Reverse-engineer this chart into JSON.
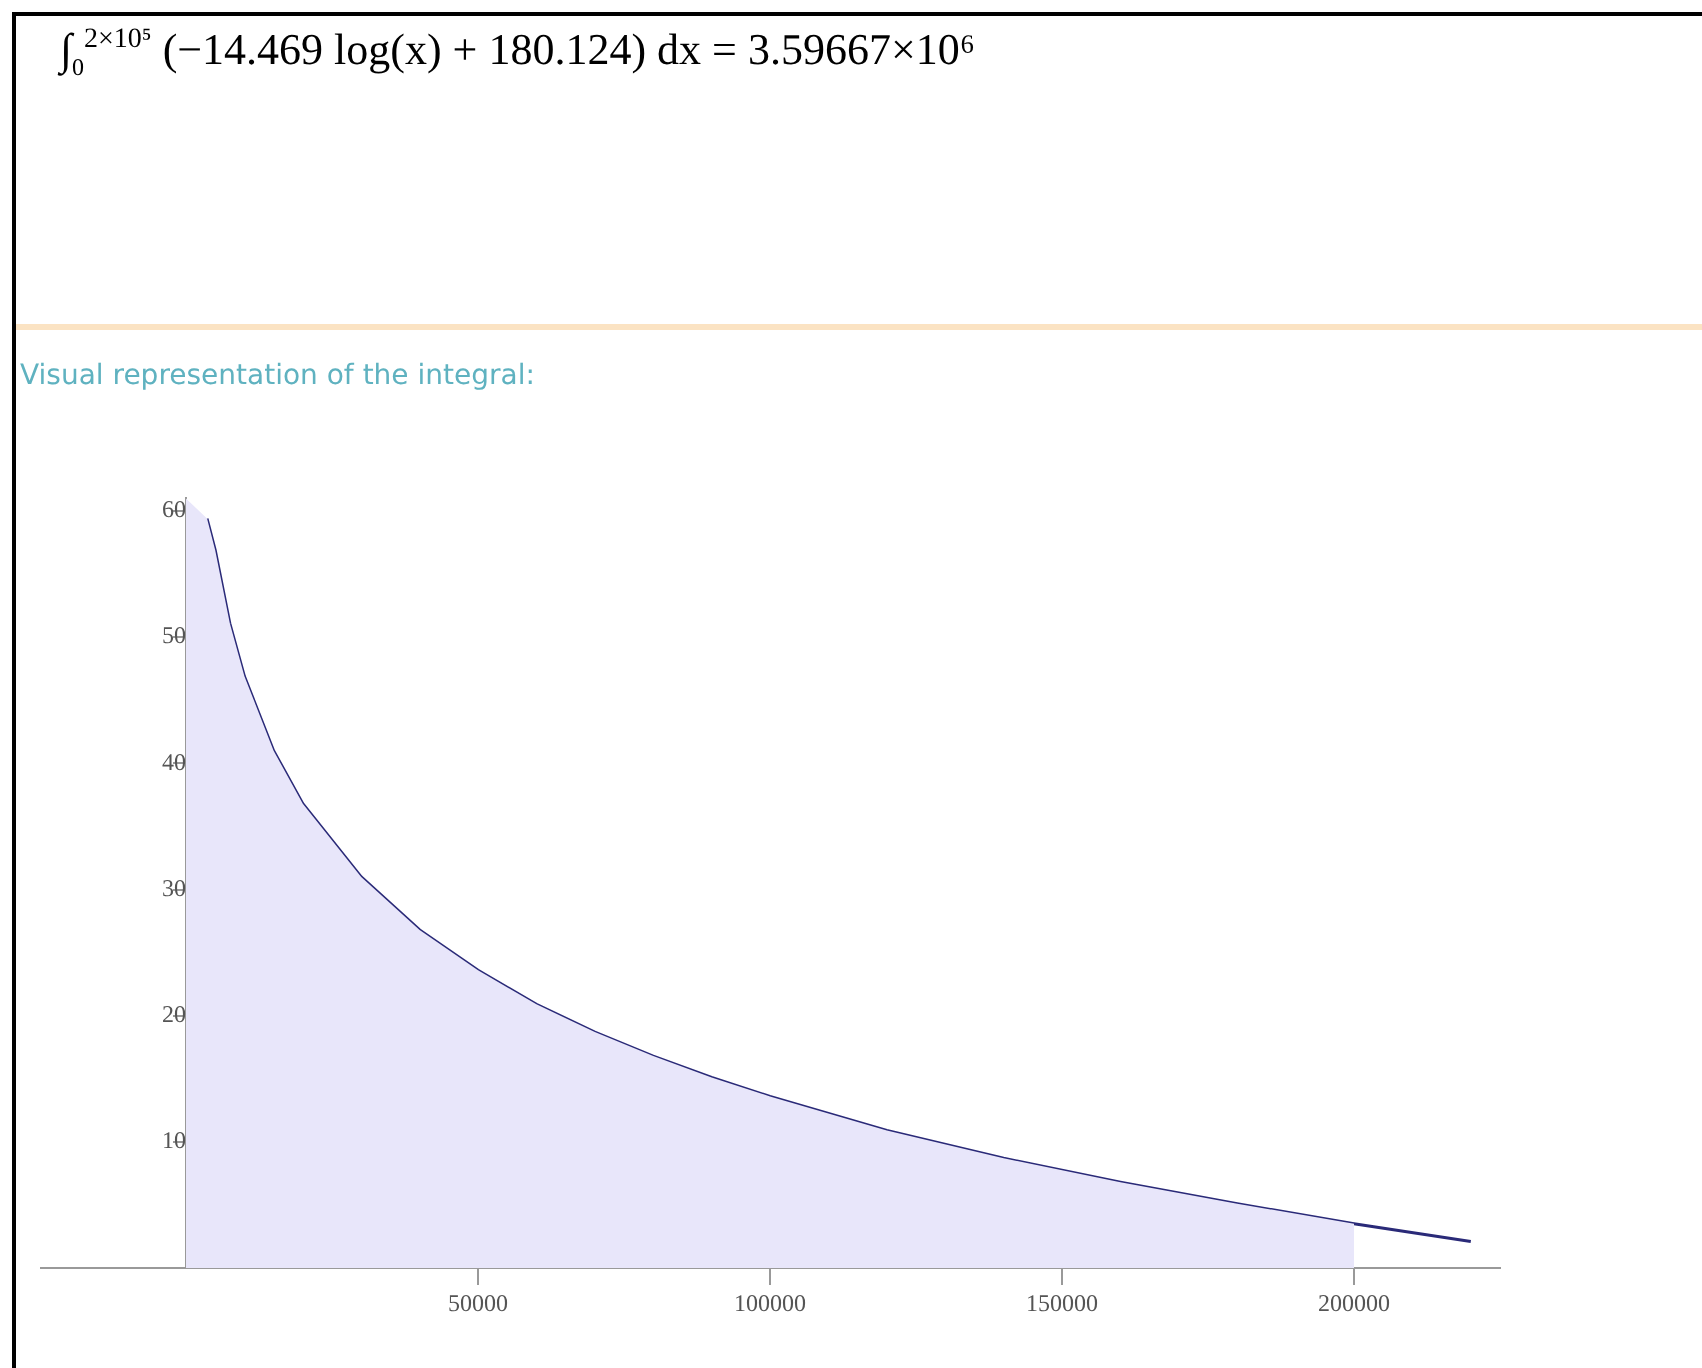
{
  "chart_data": {
    "type": "area",
    "title": "∫$_{0}$$^{2×10⁵}$ (−14.469 log(x) + 180.124) dx = 3.59667×10⁶",
    "subtitle": "Visual representation of the integral:",
    "series": [
      {
        "color": "#e8e6fa",
        "x": [
          0,
          3600,
          5000,
          7500,
          10000,
          15000,
          20000,
          30000,
          40000,
          50000,
          60000,
          70000,
          80000,
          90000,
          100000,
          120000,
          140000,
          160000,
          180000,
          200000
        ],
        "values": [
          61,
          59.4,
          56.9,
          51.1,
          46.9,
          41.0,
          36.8,
          31.0,
          26.8,
          23.6,
          20.9,
          18.7,
          16.8,
          15.1,
          13.6,
          10.9,
          8.7,
          6.8,
          5.1,
          3.5
        ]
      },
      {
        "type": "line",
        "color": "#2a2a78",
        "x": [
          3600,
          5000,
          7500,
          10000,
          15000,
          20000,
          30000,
          40000,
          50000,
          60000,
          70000,
          80000,
          90000,
          100000,
          120000,
          140000,
          160000,
          180000,
          200000,
          220000
        ],
        "values": [
          59.4,
          56.9,
          51.1,
          46.9,
          41.0,
          36.8,
          31.0,
          26.8,
          23.6,
          20.9,
          18.7,
          16.8,
          15.1,
          13.6,
          10.9,
          8.7,
          6.8,
          5.1,
          3.5,
          2.1
        ]
      }
    ],
    "xlim": [
      -25000,
      225000
    ],
    "xticks": [
      50000,
      100000,
      150000,
      200000
    ],
    "ylim": [
      0,
      61
    ],
    "yticks": [
      10,
      20,
      30,
      40,
      50,
      60
    ],
    "grid": false,
    "legend": false,
    "marker": "none",
    "line_style": "solid"
  }
}
